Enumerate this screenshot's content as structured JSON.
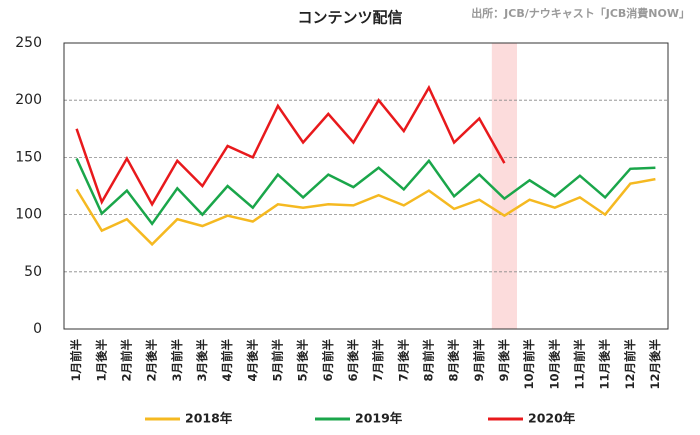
{
  "chart_data": {
    "type": "line",
    "title": "コンテンツ配信",
    "source": "出所：JCB/ナウキャスト「JCB消費NOW」",
    "categories": [
      "1月前半",
      "1月後半",
      "2月前半",
      "2月後半",
      "3月前半",
      "3月後半",
      "4月前半",
      "4月後半",
      "5月前半",
      "5月後半",
      "6月前半",
      "6月後半",
      "7月前半",
      "7月後半",
      "8月前半",
      "8月後半",
      "9月前半",
      "9月後半",
      "10月前半",
      "10月後半",
      "11月前半",
      "11月後半",
      "12月前半",
      "12月後半"
    ],
    "series": [
      {
        "name": "2018年",
        "color": "#f5b921",
        "values": [
          122,
          86,
          96,
          74,
          96,
          90,
          99,
          94,
          109,
          106,
          109,
          108,
          117,
          108,
          121,
          105,
          113,
          99,
          113,
          106,
          115,
          100,
          127,
          131
        ]
      },
      {
        "name": "2019年",
        "color": "#1aa64a",
        "values": [
          149,
          101,
          121,
          92,
          123,
          100,
          125,
          106,
          135,
          115,
          135,
          124,
          141,
          122,
          147,
          116,
          135,
          114,
          130,
          116,
          134,
          115,
          140,
          141
        ]
      },
      {
        "name": "2020年",
        "color": "#e8191c",
        "values": [
          175,
          111,
          149,
          109,
          147,
          125,
          160,
          150,
          195,
          163,
          188,
          163,
          200,
          173,
          211,
          163,
          184,
          145,
          null,
          null,
          null,
          null,
          null,
          null
        ]
      }
    ],
    "ylim": [
      0,
      250
    ],
    "yticks": [
      0,
      50,
      100,
      150,
      200,
      250
    ],
    "grid": true,
    "legend": "bottom",
    "highlight": {
      "index": 17,
      "color": "#fcdcdc"
    }
  }
}
